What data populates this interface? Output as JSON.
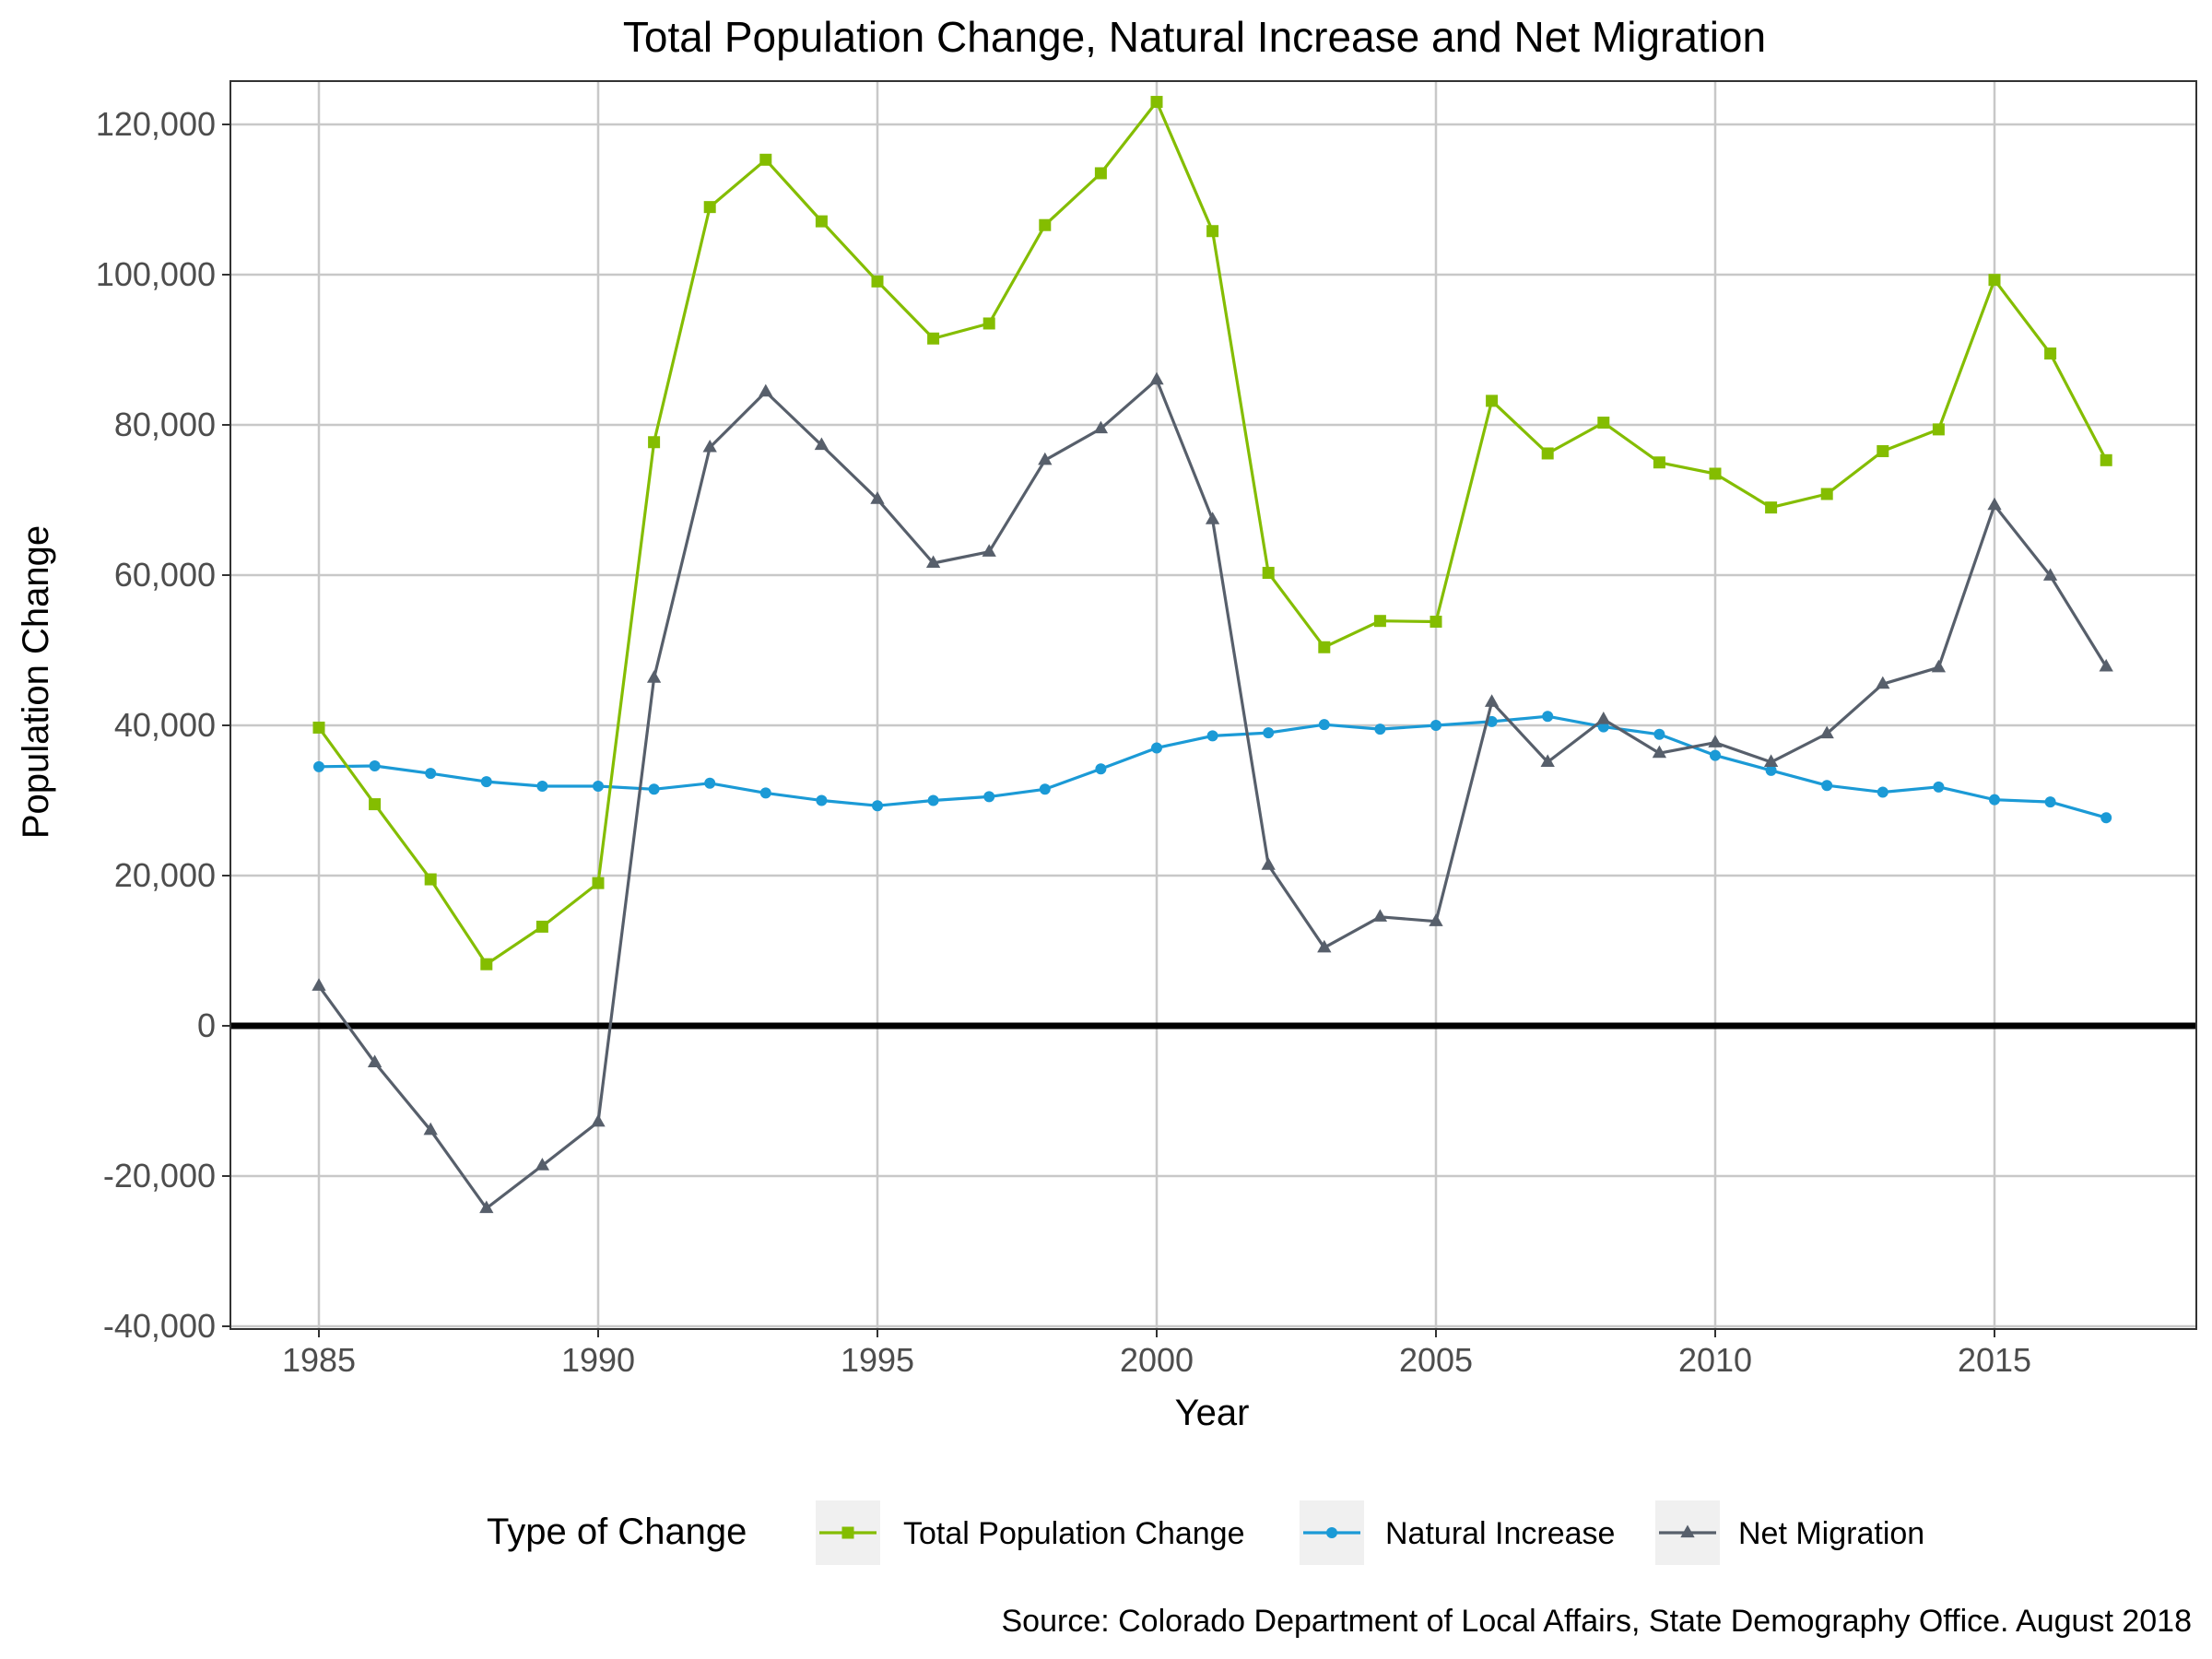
{
  "chart_data": {
    "type": "line",
    "title": "Total Population Change, Natural Increase and Net Migration",
    "xlabel": "Year",
    "ylabel": "Population Change",
    "xlim": [
      1983.4,
      2018.6
    ],
    "ylim": [
      -40000,
      122000
    ],
    "x_ticks": [
      1985,
      1990,
      1995,
      2000,
      2005,
      2010,
      2015
    ],
    "y_ticks": [
      -40000,
      -20000,
      0,
      20000,
      40000,
      60000,
      80000,
      100000,
      120000
    ],
    "x_tick_labels": [
      "1985",
      "1990",
      "1995",
      "2000",
      "2005",
      "2010",
      "2015"
    ],
    "y_tick_labels": [
      "-40,000",
      "-20,000",
      "0",
      "20,000",
      "40,000",
      "60,000",
      "80,000",
      "100,000",
      "120,000"
    ],
    "grid": true,
    "reference_line": 0,
    "legend": {
      "title": "Type of Change",
      "position": "bottom"
    },
    "x": [
      1985,
      1986,
      1987,
      1988,
      1989,
      1990,
      1991,
      1992,
      1993,
      1994,
      1995,
      1996,
      1997,
      1998,
      1999,
      2000,
      2001,
      2002,
      2003,
      2004,
      2005,
      2006,
      2007,
      2008,
      2009,
      2010,
      2011,
      2012,
      2013,
      2014,
      2015,
      2016,
      2017
    ],
    "series": [
      {
        "name": "Total Population Change",
        "color": "#84bd00",
        "marker": "square",
        "values": [
          39700,
          29500,
          19500,
          8200,
          13200,
          19000,
          77700,
          109000,
          115300,
          107100,
          99100,
          91500,
          93500,
          106600,
          113500,
          123000,
          105800,
          60300,
          50400,
          53900,
          53800,
          83200,
          76200,
          80300,
          75000,
          73500,
          69000,
          70800,
          76500,
          79400,
          99300,
          89500,
          75300
        ]
      },
      {
        "name": "Natural Increase",
        "color": "#1b9ad6",
        "marker": "circle",
        "values": [
          34500,
          34600,
          33600,
          32500,
          31900,
          31900,
          31500,
          32300,
          31000,
          30000,
          29300,
          30000,
          30500,
          31500,
          34200,
          37000,
          38600,
          39000,
          40100,
          39500,
          40000,
          40500,
          41200,
          39800,
          38800,
          36000,
          34000,
          32000,
          31100,
          31800,
          30100,
          29800,
          27700
        ]
      },
      {
        "name": "Net Migration",
        "color": "#575f6b",
        "marker": "triangle",
        "values": [
          5300,
          -4900,
          -13900,
          -24300,
          -18600,
          -12800,
          46300,
          77000,
          84400,
          77300,
          70100,
          61600,
          63100,
          75300,
          79500,
          86000,
          67400,
          21400,
          10400,
          14500,
          13900,
          43100,
          35100,
          40800,
          36300,
          37700,
          35100,
          38900,
          45500,
          47700,
          69300,
          59900,
          47800
        ]
      }
    ],
    "caption": "Source: Colorado Department of Local Affairs, State Demography Office. August 2018"
  }
}
